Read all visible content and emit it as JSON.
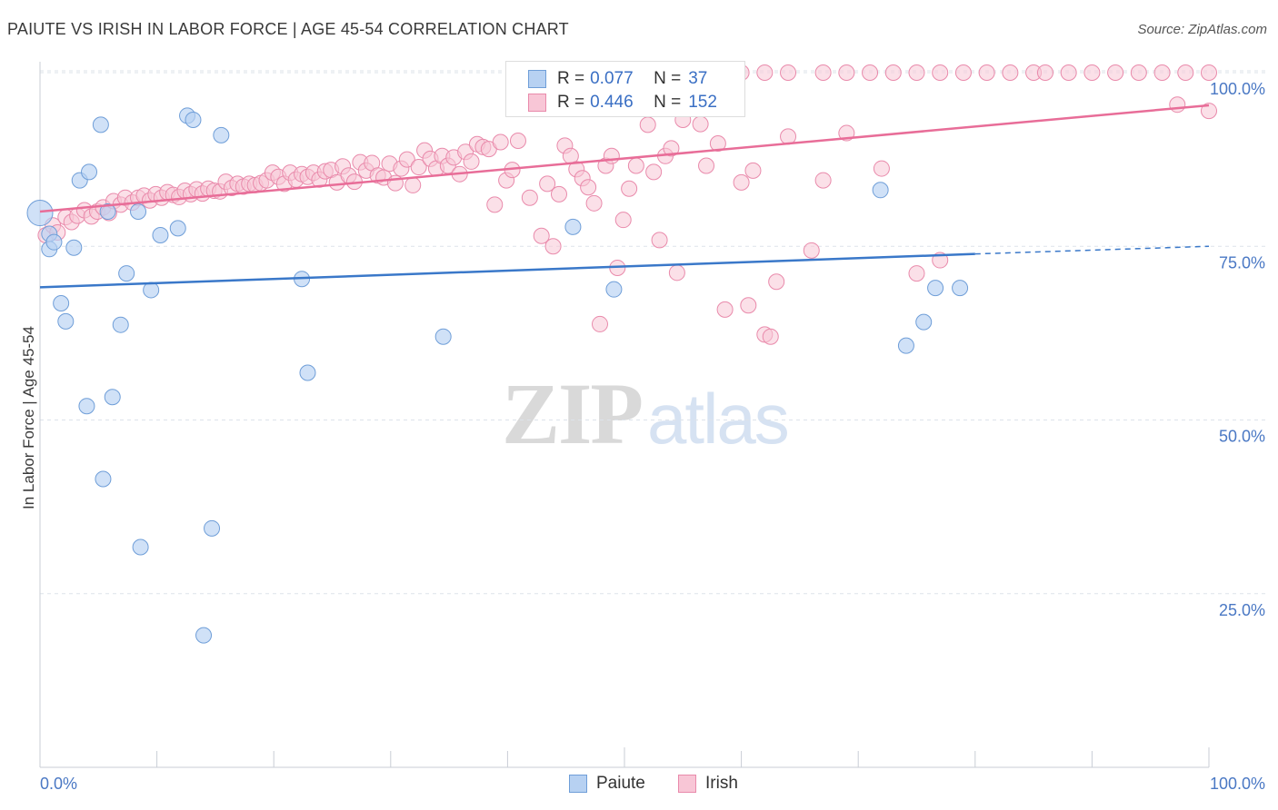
{
  "header": {
    "title": "PAIUTE VS IRISH IN LABOR FORCE | AGE 45-54 CORRELATION CHART",
    "source": "Source: ZipAtlas.com"
  },
  "axis": {
    "ylabel": "In Labor Force | Age 45-54",
    "xmin_label": "0.0%",
    "xmax_label": "100.0%"
  },
  "legend": {
    "paiute": {
      "r_label": "R =",
      "r_value": "0.077",
      "n_label": "N =",
      "n_value": "37"
    },
    "irish": {
      "r_label": "R =",
      "r_value": "0.446",
      "n_label": "N =",
      "n_value": "152"
    }
  },
  "bottom_legend": {
    "paiute": "Paiute",
    "irish": "Irish"
  },
  "watermark": {
    "zip": "ZIP",
    "atlas": "atlas"
  },
  "colors": {
    "paiute_fill": "#b7d1f2",
    "paiute_stroke": "#6f9ed8",
    "paiute_line": "#3a78c9",
    "irish_fill": "#f8c6d6",
    "irish_stroke": "#e98aab",
    "irish_line": "#e86d98",
    "grid": "#dde3ea",
    "tick_text": "#4a78c4"
  },
  "chart_data": {
    "type": "scatter",
    "title": "PAIUTE VS IRISH IN LABOR FORCE | AGE 45-54 CORRELATION CHART",
    "xlabel": "",
    "ylabel": "In Labor Force | Age 45-54",
    "xlim": [
      0,
      100
    ],
    "ylim": [
      0,
      102
    ],
    "y_ticks": [
      {
        "value": 25,
        "label": "25.0%"
      },
      {
        "value": 50,
        "label": "50.0%"
      },
      {
        "value": 75,
        "label": "75.0%"
      },
      {
        "value": 100,
        "label": "100.0%"
      }
    ],
    "x_tick_labels": [
      "0.0%",
      "100.0%"
    ],
    "grid": "horizontal dashed",
    "series": [
      {
        "name": "Paiute",
        "color": "#6f9ed8",
        "points": [
          [
            0.0,
            79.8
          ],
          [
            0.8,
            76.8
          ],
          [
            0.8,
            74.6
          ],
          [
            1.2,
            75.6
          ],
          [
            1.8,
            66.8
          ],
          [
            2.2,
            64.2
          ],
          [
            2.9,
            74.8
          ],
          [
            3.4,
            84.5
          ],
          [
            4.0,
            52.0
          ],
          [
            4.2,
            85.7
          ],
          [
            5.2,
            92.5
          ],
          [
            5.4,
            41.5
          ],
          [
            5.8,
            80.0
          ],
          [
            6.2,
            53.3
          ],
          [
            6.9,
            63.7
          ],
          [
            7.4,
            71.1
          ],
          [
            8.4,
            80.0
          ],
          [
            8.6,
            31.7
          ],
          [
            9.5,
            68.7
          ],
          [
            10.3,
            76.6
          ],
          [
            11.8,
            77.6
          ],
          [
            12.6,
            93.8
          ],
          [
            13.1,
            93.2
          ],
          [
            14.0,
            19.0
          ],
          [
            14.7,
            34.4
          ],
          [
            15.5,
            91.0
          ],
          [
            22.4,
            70.3
          ],
          [
            22.9,
            56.8
          ],
          [
            34.5,
            62.0
          ],
          [
            45.6,
            77.8
          ],
          [
            46.0,
            100.0
          ],
          [
            49.1,
            68.8
          ],
          [
            71.9,
            83.1
          ],
          [
            74.1,
            60.7
          ],
          [
            75.6,
            64.1
          ],
          [
            76.6,
            69.0
          ],
          [
            78.7,
            69.0
          ]
        ],
        "trend": {
          "x": [
            0,
            80
          ],
          "y": [
            69.1,
            73.9
          ]
        },
        "trend_extension": {
          "x": [
            80,
            100
          ],
          "y": [
            73.9,
            75.0
          ]
        }
      },
      {
        "name": "Irish",
        "color": "#e98aab",
        "points": [
          [
            0.5,
            76.6
          ],
          [
            1.1,
            78.0
          ],
          [
            1.5,
            77.0
          ],
          [
            2.2,
            79.2
          ],
          [
            2.7,
            78.5
          ],
          [
            3.2,
            79.4
          ],
          [
            3.8,
            80.2
          ],
          [
            4.4,
            79.3
          ],
          [
            4.9,
            80.0
          ],
          [
            5.4,
            80.6
          ],
          [
            5.9,
            79.8
          ],
          [
            6.3,
            81.5
          ],
          [
            6.9,
            81.0
          ],
          [
            7.3,
            82.0
          ],
          [
            7.9,
            81.3
          ],
          [
            8.4,
            82.0
          ],
          [
            8.9,
            82.3
          ],
          [
            9.4,
            81.6
          ],
          [
            9.9,
            82.5
          ],
          [
            10.4,
            82.0
          ],
          [
            10.9,
            82.8
          ],
          [
            11.4,
            82.4
          ],
          [
            11.9,
            82.1
          ],
          [
            12.4,
            83.0
          ],
          [
            12.9,
            82.5
          ],
          [
            13.4,
            83.2
          ],
          [
            13.9,
            82.6
          ],
          [
            14.4,
            83.3
          ],
          [
            14.9,
            83.0
          ],
          [
            15.4,
            82.9
          ],
          [
            15.9,
            84.3
          ],
          [
            16.4,
            83.4
          ],
          [
            16.9,
            84.0
          ],
          [
            17.4,
            83.6
          ],
          [
            17.9,
            84.0
          ],
          [
            18.4,
            83.8
          ],
          [
            18.9,
            84.1
          ],
          [
            19.4,
            84.5
          ],
          [
            19.9,
            85.6
          ],
          [
            20.4,
            85.0
          ],
          [
            20.9,
            84.0
          ],
          [
            21.4,
            85.6
          ],
          [
            21.9,
            84.6
          ],
          [
            22.4,
            85.4
          ],
          [
            22.9,
            85.0
          ],
          [
            23.4,
            85.6
          ],
          [
            23.9,
            84.6
          ],
          [
            24.4,
            85.8
          ],
          [
            24.9,
            86.0
          ],
          [
            25.4,
            84.2
          ],
          [
            25.9,
            86.5
          ],
          [
            26.4,
            85.2
          ],
          [
            26.9,
            84.3
          ],
          [
            27.4,
            87.1
          ],
          [
            27.9,
            85.9
          ],
          [
            28.4,
            87.0
          ],
          [
            28.9,
            85.2
          ],
          [
            29.4,
            84.9
          ],
          [
            29.9,
            86.9
          ],
          [
            30.4,
            84.1
          ],
          [
            30.9,
            86.2
          ],
          [
            31.4,
            87.5
          ],
          [
            31.9,
            83.8
          ],
          [
            32.4,
            86.4
          ],
          [
            32.9,
            88.8
          ],
          [
            33.4,
            87.6
          ],
          [
            33.9,
            86.2
          ],
          [
            34.4,
            88.0
          ],
          [
            34.9,
            86.6
          ],
          [
            35.4,
            87.8
          ],
          [
            35.9,
            85.4
          ],
          [
            36.4,
            88.6
          ],
          [
            36.9,
            87.2
          ],
          [
            37.4,
            89.7
          ],
          [
            37.9,
            89.3
          ],
          [
            38.4,
            89.0
          ],
          [
            38.9,
            81.0
          ],
          [
            39.4,
            90.0
          ],
          [
            39.9,
            84.5
          ],
          [
            40.4,
            86.0
          ],
          [
            40.9,
            90.2
          ],
          [
            41.9,
            82.0
          ],
          [
            42.9,
            76.5
          ],
          [
            43.4,
            84.0
          ],
          [
            43.9,
            75.0
          ],
          [
            44.4,
            82.5
          ],
          [
            44.9,
            89.5
          ],
          [
            45.4,
            88.0
          ],
          [
            45.9,
            86.1
          ],
          [
            46.4,
            84.8
          ],
          [
            46.9,
            83.5
          ],
          [
            47.4,
            81.2
          ],
          [
            47.9,
            63.8
          ],
          [
            48.4,
            86.6
          ],
          [
            48.9,
            88.0
          ],
          [
            49.4,
            71.9
          ],
          [
            49.9,
            78.8
          ],
          [
            50.4,
            83.3
          ],
          [
            51.0,
            86.6
          ],
          [
            52.0,
            92.5
          ],
          [
            52.5,
            85.7
          ],
          [
            53.0,
            75.9
          ],
          [
            53.5,
            88.0
          ],
          [
            54.0,
            89.1
          ],
          [
            54.5,
            71.2
          ],
          [
            55.0,
            93.2
          ],
          [
            55.5,
            95.5
          ],
          [
            56.0,
            97.9
          ],
          [
            56.5,
            92.6
          ],
          [
            57.0,
            86.6
          ],
          [
            58.0,
            89.8
          ],
          [
            58.6,
            65.9
          ],
          [
            60.0,
            84.2
          ],
          [
            60.6,
            66.5
          ],
          [
            61.0,
            85.9
          ],
          [
            62.0,
            62.3
          ],
          [
            62.5,
            62.0
          ],
          [
            63.0,
            69.9
          ],
          [
            64.0,
            90.8
          ],
          [
            66.0,
            74.4
          ],
          [
            67.0,
            84.5
          ],
          [
            69.0,
            91.3
          ],
          [
            72.0,
            86.2
          ],
          [
            75.0,
            71.1
          ],
          [
            77.0,
            73.0
          ],
          [
            44.0,
            100.0
          ],
          [
            47.0,
            100.0
          ],
          [
            56.0,
            100.0
          ],
          [
            58.0,
            100.0
          ],
          [
            60.0,
            100.0
          ],
          [
            62.0,
            100.0
          ],
          [
            64.0,
            100.0
          ],
          [
            67.0,
            100.0
          ],
          [
            69.0,
            100.0
          ],
          [
            71.0,
            100.0
          ],
          [
            73.0,
            100.0
          ],
          [
            75.0,
            100.0
          ],
          [
            77.0,
            100.0
          ],
          [
            79.0,
            100.0
          ],
          [
            81.0,
            100.0
          ],
          [
            83.0,
            100.0
          ],
          [
            85.0,
            100.0
          ],
          [
            86.0,
            100.0
          ],
          [
            88.0,
            100.0
          ],
          [
            90.0,
            100.0
          ],
          [
            92.0,
            100.0
          ],
          [
            94.0,
            100.0
          ],
          [
            96.0,
            100.0
          ],
          [
            98.0,
            100.0
          ],
          [
            100.0,
            100.0
          ],
          [
            97.3,
            95.4
          ],
          [
            100.0,
            94.5
          ]
        ],
        "trend": {
          "x": [
            0,
            100
          ],
          "y": [
            80.0,
            95.3
          ]
        }
      }
    ]
  }
}
